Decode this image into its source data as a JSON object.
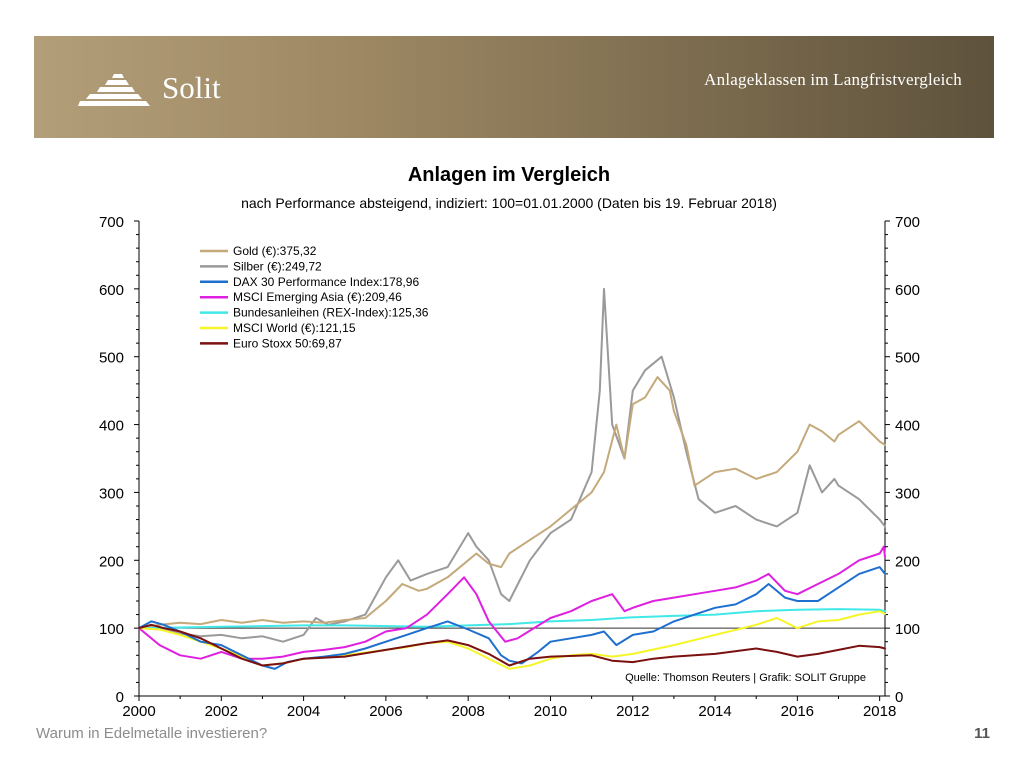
{
  "header": {
    "brand": "Solit",
    "subtitle": "Anlageklassen im Langfristvergleich"
  },
  "footer": {
    "text": "Warum in Edelmetalle investieren?",
    "page_number": "11"
  },
  "icons": {
    "logo": "pyramid-logo-icon"
  },
  "chart_data": {
    "type": "line",
    "title": "Anlagen im Vergleich",
    "subtitle": "nach Performance absteigend, indiziert: 100=01.01.2000 (Daten bis 19. Februar 2018)",
    "source": "Quelle: Thomson Reuters | Grafik: SOLIT Gruppe",
    "xlim": [
      2000,
      2018.13
    ],
    "ylim": [
      0,
      700
    ],
    "x_ticks": [
      "2000",
      "2002",
      "2004",
      "2006",
      "2008",
      "2010",
      "2012",
      "2014",
      "2016",
      "2018"
    ],
    "y_ticks": [
      "0",
      "100",
      "200",
      "300",
      "400",
      "500",
      "600",
      "700"
    ],
    "reference_line": 100,
    "legend_position": "top-left",
    "series": [
      {
        "name": "Gold (€):375,32",
        "color": "#c4a97a",
        "x": [
          2000,
          2000.5,
          2001,
          2001.5,
          2002,
          2002.5,
          2003,
          2003.5,
          2004,
          2004.5,
          2005,
          2005.5,
          2006,
          2006.4,
          2006.8,
          2007,
          2007.5,
          2008,
          2008.2,
          2008.5,
          2008.8,
          2009,
          2009.5,
          2010,
          2010.5,
          2011,
          2011.3,
          2011.6,
          2011.8,
          2012,
          2012.3,
          2012.6,
          2012.9,
          2013,
          2013.3,
          2013.5,
          2014,
          2014.5,
          2015,
          2015.5,
          2016,
          2016.3,
          2016.6,
          2016.9,
          2017,
          2017.5,
          2018,
          2018.13
        ],
        "y": [
          100,
          105,
          108,
          106,
          112,
          108,
          112,
          108,
          110,
          108,
          112,
          115,
          140,
          165,
          155,
          158,
          175,
          200,
          210,
          195,
          190,
          210,
          230,
          250,
          275,
          300,
          330,
          400,
          350,
          430,
          440,
          470,
          450,
          420,
          370,
          310,
          330,
          335,
          320,
          330,
          360,
          400,
          390,
          375,
          385,
          405,
          375,
          370
        ]
      },
      {
        "name": "Silber (€):249,72",
        "color": "#9a9a9a",
        "x": [
          2000,
          2000.5,
          2001,
          2001.5,
          2002,
          2002.5,
          2003,
          2003.5,
          2004,
          2004.3,
          2004.6,
          2005,
          2005.5,
          2006,
          2006.3,
          2006.6,
          2007,
          2007.5,
          2008,
          2008.2,
          2008.5,
          2008.8,
          2009,
          2009.5,
          2010,
          2010.5,
          2011,
          2011.2,
          2011.3,
          2011.5,
          2011.8,
          2012,
          2012.3,
          2012.7,
          2013,
          2013.3,
          2013.6,
          2014,
          2014.5,
          2015,
          2015.5,
          2016,
          2016.3,
          2016.6,
          2016.9,
          2017,
          2017.5,
          2018,
          2018.13
        ],
        "y": [
          100,
          98,
          92,
          88,
          90,
          85,
          88,
          80,
          90,
          115,
          105,
          110,
          120,
          175,
          200,
          170,
          180,
          190,
          240,
          220,
          200,
          150,
          140,
          200,
          240,
          260,
          330,
          450,
          600,
          400,
          350,
          450,
          480,
          500,
          440,
          360,
          290,
          270,
          280,
          260,
          250,
          270,
          340,
          300,
          320,
          310,
          290,
          260,
          250
        ]
      },
      {
        "name": "DAX 30 Performance Index:178,96",
        "color": "#1f6fcf",
        "x": [
          2000,
          2000.3,
          2000.6,
          2001,
          2001.5,
          2002,
          2002.5,
          2003,
          2003.3,
          2003.6,
          2004,
          2004.5,
          2005,
          2005.5,
          2006,
          2006.5,
          2007,
          2007.5,
          2008,
          2008.5,
          2008.8,
          2009,
          2009.3,
          2009.7,
          2010,
          2010.5,
          2011,
          2011.3,
          2011.6,
          2012,
          2012.5,
          2013,
          2013.5,
          2014,
          2014.5,
          2015,
          2015.3,
          2015.7,
          2016,
          2016.5,
          2017,
          2017.5,
          2018,
          2018.13
        ],
        "y": [
          100,
          110,
          105,
          95,
          80,
          75,
          60,
          45,
          40,
          50,
          55,
          58,
          62,
          70,
          80,
          90,
          100,
          110,
          98,
          85,
          60,
          52,
          48,
          65,
          80,
          85,
          90,
          95,
          75,
          90,
          95,
          110,
          120,
          130,
          135,
          150,
          165,
          145,
          140,
          140,
          160,
          180,
          190,
          180
        ]
      },
      {
        "name": "MSCI Emerging Asia (€):209,46",
        "color": "#e020e0",
        "x": [
          2000,
          2000.5,
          2001,
          2001.5,
          2002,
          2002.5,
          2003,
          2003.5,
          2004,
          2004.5,
          2005,
          2005.5,
          2006,
          2006.5,
          2007,
          2007.5,
          2007.9,
          2008.2,
          2008.5,
          2008.9,
          2009.2,
          2009.6,
          2010,
          2010.5,
          2011,
          2011.5,
          2011.8,
          2012,
          2012.5,
          2013,
          2013.5,
          2014,
          2014.5,
          2015,
          2015.3,
          2015.7,
          2016,
          2016.5,
          2017,
          2017.5,
          2018,
          2018.1,
          2018.13
        ],
        "y": [
          100,
          75,
          60,
          55,
          65,
          55,
          55,
          58,
          65,
          68,
          72,
          80,
          95,
          100,
          120,
          150,
          175,
          150,
          110,
          80,
          85,
          100,
          115,
          125,
          140,
          150,
          125,
          130,
          140,
          145,
          150,
          155,
          160,
          170,
          180,
          155,
          150,
          165,
          180,
          200,
          210,
          220,
          205
        ]
      },
      {
        "name": "Bundesanleihen (REX-Index):125,36",
        "color": "#40e8e8",
        "x": [
          2000,
          2001,
          2002,
          2003,
          2004,
          2005,
          2006,
          2007,
          2008,
          2009,
          2010,
          2011,
          2012,
          2013,
          2014,
          2015,
          2016,
          2017,
          2018,
          2018.13
        ],
        "y": [
          100,
          101,
          102,
          103,
          104,
          104,
          103,
          102,
          104,
          106,
          110,
          112,
          116,
          118,
          120,
          125,
          127,
          128,
          127,
          125
        ]
      },
      {
        "name": "MSCI World (€):121,15",
        "color": "#f5f52a",
        "x": [
          2000,
          2000.5,
          2001,
          2001.5,
          2002,
          2002.5,
          2003,
          2003.5,
          2004,
          2005,
          2006,
          2006.5,
          2007,
          2007.5,
          2008,
          2008.5,
          2009,
          2009.5,
          2010,
          2010.5,
          2011,
          2011.5,
          2012,
          2013,
          2014,
          2015,
          2015.5,
          2016,
          2016.5,
          2017,
          2017.5,
          2018,
          2018.13
        ],
        "y": [
          100,
          98,
          90,
          80,
          70,
          58,
          45,
          48,
          55,
          60,
          68,
          72,
          78,
          80,
          70,
          55,
          40,
          45,
          55,
          60,
          62,
          58,
          62,
          75,
          90,
          105,
          115,
          100,
          110,
          112,
          120,
          125,
          121
        ]
      },
      {
        "name": "Euro Stoxx 50:69,87",
        "color": "#7a1010",
        "x": [
          2000,
          2000.3,
          2000.6,
          2001,
          2001.5,
          2002,
          2002.5,
          2003,
          2003.5,
          2004,
          2005,
          2006,
          2007,
          2007.5,
          2008,
          2008.5,
          2009,
          2009.5,
          2010,
          2011,
          2011.5,
          2012,
          2012.5,
          2013,
          2014,
          2015,
          2015.5,
          2016,
          2016.5,
          2017,
          2017.5,
          2018,
          2018.13
        ],
        "y": [
          100,
          105,
          100,
          95,
          85,
          70,
          55,
          45,
          48,
          55,
          58,
          68,
          78,
          82,
          75,
          62,
          45,
          55,
          58,
          60,
          52,
          50,
          55,
          58,
          62,
          70,
          65,
          58,
          62,
          68,
          74,
          72,
          70
        ]
      }
    ]
  }
}
